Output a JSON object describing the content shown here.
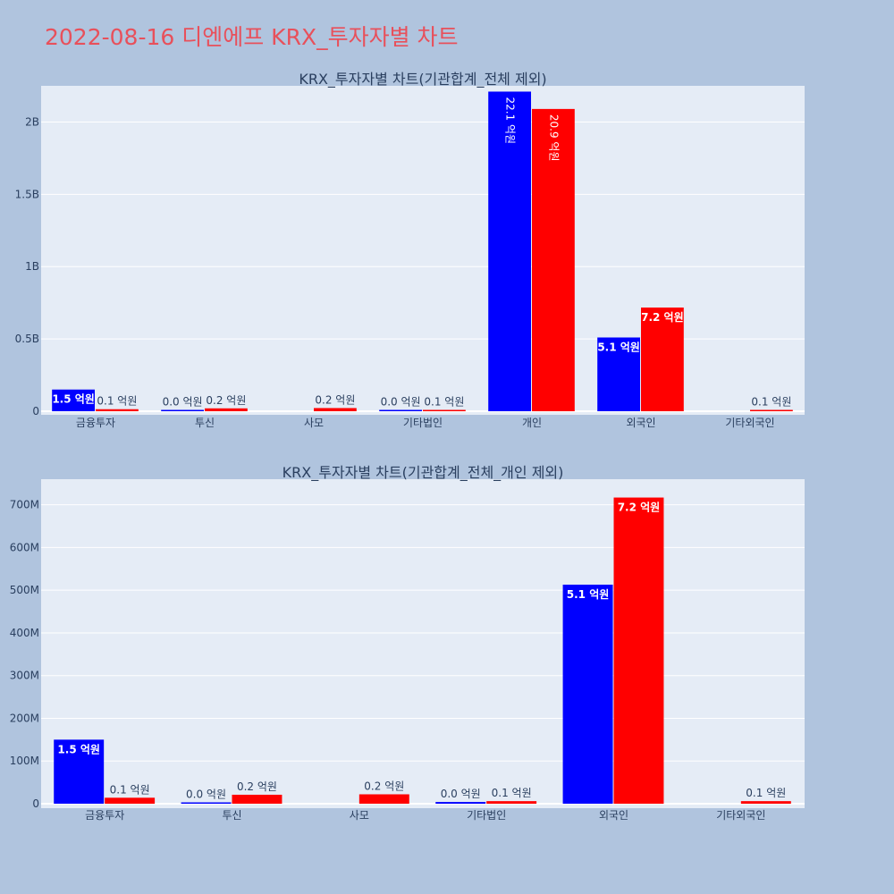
{
  "page": {
    "title": "2022-08-16 디엔에프 KRX_투자자별 차트",
    "background": "#b0c4de",
    "title_color": "#e8505b"
  },
  "colors": {
    "series_a": "#0000ff",
    "series_b": "#ff0000",
    "plot_background": "#e5ecf6",
    "gridline": "#ffffff",
    "text": "#2a3f5f"
  },
  "chart_data": [
    {
      "type": "bar",
      "title": "KRX_투자자별 차트(기관합계_전체 제외)",
      "categories": [
        "금융투자",
        "투신",
        "사모",
        "기타법인",
        "개인",
        "외국인",
        "기타외국인"
      ],
      "ylim": [
        0,
        2250000000
      ],
      "yticks": [
        0,
        500000000,
        1000000000,
        1500000000,
        2000000000
      ],
      "ytick_labels": [
        "0",
        "0.5B",
        "1B",
        "1.5B",
        "2B"
      ],
      "grid": true,
      "series": [
        {
          "color": "#0000ff",
          "values": [
            150000000,
            3000000,
            null,
            4000000,
            2210000000,
            510000000,
            null
          ],
          "labels": [
            "1.5 억원",
            "0.0 억원",
            null,
            "0.0 억원",
            "22.1 억원",
            "5.1 억원",
            null
          ]
        },
        {
          "color": "#ff0000",
          "values": [
            14000000,
            20000000,
            22000000,
            6000000,
            2090000000,
            717000000,
            6000000
          ],
          "labels": [
            "0.1 억원",
            "0.2 억원",
            "0.2 억원",
            "0.1 억원",
            "20.9 억원",
            "7.2 억원",
            "0.1 억원"
          ]
        }
      ]
    },
    {
      "type": "bar",
      "title": "KRX_투자자별 차트(기관합계_전체_개인 제외)",
      "categories": [
        "금융투자",
        "투신",
        "사모",
        "기타법인",
        "외국인",
        "기타외국인"
      ],
      "ylim": [
        0,
        760000000
      ],
      "yticks": [
        0,
        100000000,
        200000000,
        300000000,
        400000000,
        500000000,
        600000000,
        700000000
      ],
      "ytick_labels": [
        "0",
        "100M",
        "200M",
        "300M",
        "400M",
        "500M",
        "600M",
        "700M"
      ],
      "grid": true,
      "series": [
        {
          "color": "#0000ff",
          "values": [
            150000000,
            3000000,
            null,
            4000000,
            513000000,
            null
          ],
          "labels": [
            "1.5 억원",
            "0.0 억원",
            null,
            "0.0 억원",
            "5.1 억원",
            null
          ]
        },
        {
          "color": "#ff0000",
          "values": [
            14000000,
            21000000,
            22000000,
            6000000,
            717000000,
            6000000
          ],
          "labels": [
            "0.1 억원",
            "0.2 억원",
            "0.2 억원",
            "0.1 억원",
            "7.2 억원",
            "0.1 억원"
          ]
        }
      ]
    }
  ]
}
